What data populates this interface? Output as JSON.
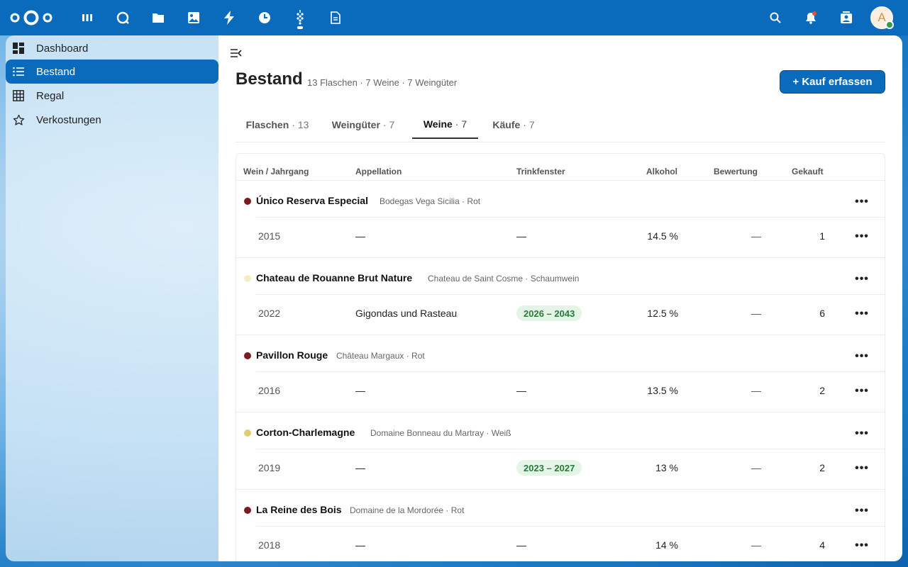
{
  "topbar": {
    "apps": [
      {
        "name": "dashboard-app-icon"
      },
      {
        "name": "search-app-icon"
      },
      {
        "name": "files-app-icon"
      },
      {
        "name": "photos-app-icon"
      },
      {
        "name": "activity-app-icon"
      },
      {
        "name": "recent-app-icon"
      },
      {
        "name": "wine-app-icon"
      },
      {
        "name": "notes-app-icon"
      }
    ],
    "avatar_letter": "A"
  },
  "sidebar": {
    "items": [
      {
        "label": "Dashboard",
        "icon": "dashboard-icon"
      },
      {
        "label": "Bestand",
        "icon": "list-icon",
        "active": true
      },
      {
        "label": "Regal",
        "icon": "grid-icon"
      },
      {
        "label": "Verkostungen",
        "icon": "star-icon"
      }
    ]
  },
  "page": {
    "title": "Bestand",
    "subtitle": "13 Flaschen · 7 Weine · 7 Weingüter",
    "primary_button": "+ Kauf erfassen"
  },
  "tabs": [
    {
      "label": "Flaschen",
      "count": "· 13"
    },
    {
      "label": "Weingüter",
      "count": "· 7"
    },
    {
      "label": "Weine",
      "count": "· 7",
      "active": true
    },
    {
      "label": "Käufe",
      "count": "· 7"
    }
  ],
  "table": {
    "headers": [
      "Wein / Jahrgang",
      "Appellation",
      "Trinkfenster",
      "Alkohol",
      "Bewertung",
      "Gekauft"
    ],
    "wines": [
      {
        "name": "Único Reserva Especial",
        "meta": "Bodegas Vega Sicilia · Rot",
        "color": "#7a1c1c",
        "vintage": {
          "year": "2015",
          "appellation": "—",
          "drink": "—",
          "drink_pill": false,
          "alcohol": "14.5 %",
          "rating": "—",
          "bought": "1"
        }
      },
      {
        "name": "Chateau de Rouanne Brut Nature",
        "meta": "Chateau de Saint Cosme · Schaumwein",
        "color": "#f5ecc4",
        "vintage": {
          "year": "2022",
          "appellation": "Gigondas und Rasteau",
          "drink": "2026 – 2043",
          "drink_pill": true,
          "alcohol": "12.5 %",
          "rating": "—",
          "bought": "6"
        }
      },
      {
        "name": "Pavillon Rouge",
        "meta": "Château Margaux · Rot",
        "color": "#7a1c1c",
        "vintage": {
          "year": "2016",
          "appellation": "—",
          "drink": "—",
          "drink_pill": false,
          "alcohol": "13.5 %",
          "rating": "—",
          "bought": "2"
        }
      },
      {
        "name": "Corton-Charlemagne",
        "meta": "Domaine Bonneau du Martray · Weiß",
        "color": "#e2cd72",
        "vintage": {
          "year": "2019",
          "appellation": "—",
          "drink": "2023 – 2027",
          "drink_pill": true,
          "alcohol": "13 %",
          "rating": "—",
          "bought": "2"
        }
      },
      {
        "name": "La Reine des Bois",
        "meta": "Domaine de la Mordorée · Rot",
        "color": "#7a1c1c",
        "vintage": {
          "year": "2018",
          "appellation": "—",
          "drink": "—",
          "drink_pill": false,
          "alcohol": "14 %",
          "rating": "—",
          "bought": "4"
        }
      }
    ],
    "row_menu_label": "•••"
  }
}
